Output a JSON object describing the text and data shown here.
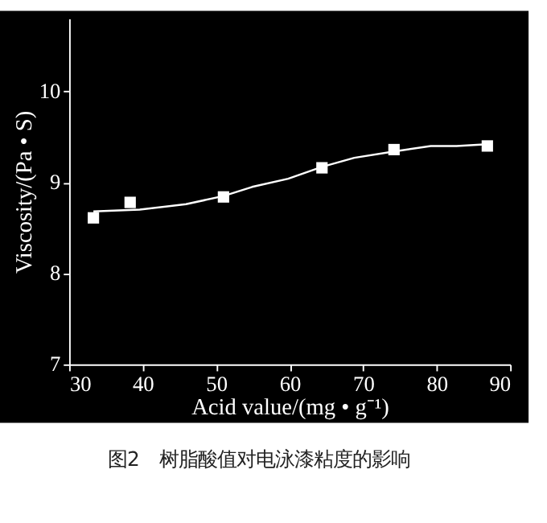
{
  "chart_data": {
    "type": "scatter",
    "xlabel": "Acid value/(mg • g⁻¹)",
    "ylabel": "Viscosity/(Pa • S)",
    "annotations": [
      "图2　树脂酸值对电泳漆粘度的影响"
    ],
    "x": [
      33.3,
      38.3,
      51.0,
      64.4,
      74.2,
      86.9
    ],
    "series": [
      {
        "marker": "square",
        "color": "#ffffff",
        "values": [
          8.61,
          8.78,
          8.84,
          9.16,
          9.36,
          9.4
        ]
      },
      {
        "type": "line",
        "marker": "none",
        "color": "#ffffff",
        "x": [
          33.3,
          39.6,
          45.9,
          51.0,
          54.9,
          59.8,
          64.4,
          68.8,
          74.2,
          79.2,
          82.7,
          86.9
        ],
        "values": [
          8.68,
          8.7,
          8.76,
          8.85,
          8.95,
          9.04,
          9.17,
          9.27,
          9.34,
          9.4,
          9.4,
          9.42
        ]
      }
    ],
    "xlim": [
      30,
      90
    ],
    "ylim": [
      7,
      10.8
    ],
    "xticks": [
      30,
      40,
      50,
      60,
      70,
      80,
      90
    ],
    "yticks": [
      7,
      8,
      9,
      10
    ],
    "grid": false,
    "legend": false
  }
}
